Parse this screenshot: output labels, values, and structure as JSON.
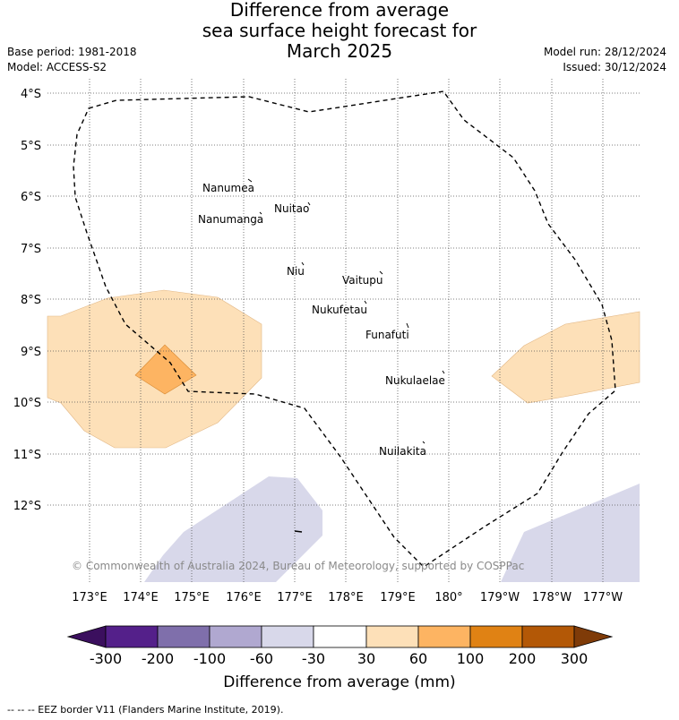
{
  "title": {
    "line1": "Difference from average",
    "line2": "sea surface height forecast for",
    "line3": "March 2025"
  },
  "meta": {
    "base_period": "Base period: 1981-2018",
    "model": "Model: ACCESS-S2",
    "model_run": "Model run: 28/12/2024",
    "issued": "Issued: 30/12/2024"
  },
  "map": {
    "lat_labels": [
      "4°S",
      "5°S",
      "6°S",
      "7°S",
      "8°S",
      "9°S",
      "10°S",
      "11°S",
      "12°S"
    ],
    "lon_labels": [
      "173°E",
      "174°E",
      "175°E",
      "176°E",
      "177°E",
      "178°E",
      "179°E",
      "180°",
      "179°W",
      "178°W",
      "177°W"
    ],
    "places": [
      {
        "name": "Nanumea"
      },
      {
        "name": "Nuitao"
      },
      {
        "name": "Nanumanga"
      },
      {
        "name": "Niu"
      },
      {
        "name": "Vaitupu"
      },
      {
        "name": "Nukufetau"
      },
      {
        "name": "Funafuti"
      },
      {
        "name": "Nukulaelae"
      },
      {
        "name": "Nuilakita"
      }
    ],
    "copyright": "© Commonwealth of Australia 2024, Bureau of Meteorology, supported by COSPPac"
  },
  "colorbar": {
    "ticks": [
      "-300",
      "-200",
      "-100",
      "-60",
      "-30",
      "30",
      "60",
      "100",
      "200",
      "300"
    ],
    "colors": [
      "#3b0f5e",
      "#54208a",
      "#7f6fab",
      "#b0a8d0",
      "#d8d8ea",
      "#ffffff",
      "#fde0b8",
      "#fdb462",
      "#e08214",
      "#b35806",
      "#7f3b08"
    ],
    "label": "Difference from average (mm)"
  },
  "footer": "-- -- -- EEZ border V11 (Flanders Marine Institute, 2019)."
}
